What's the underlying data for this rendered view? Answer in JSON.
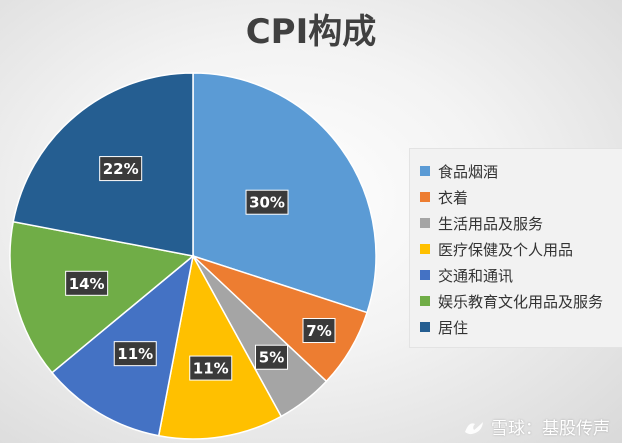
{
  "watermark": "雪球：基股传声",
  "colors": {
    "food": "#5b9bd5",
    "clothing": "#ed7d31",
    "daily": "#a5a5a5",
    "health": "#ffc000",
    "transport": "#4472c4",
    "education": "#70ad47",
    "housing": "#255e91"
  },
  "chart_data": {
    "type": "pie",
    "title": "CPI构成",
    "legend_position": "right",
    "categories": [
      "食品烟酒",
      "衣着",
      "生活用品及服务",
      "医疗保健及个人用品",
      "交通和通讯",
      "娱乐教育文化用品及服务",
      "居住"
    ],
    "values": [
      30,
      7,
      5,
      11,
      11,
      14,
      22
    ],
    "labels": [
      "30%",
      "7%",
      "5%",
      "11%",
      "11%",
      "14%",
      "22%"
    ],
    "colors": [
      "#5b9bd5",
      "#ed7d31",
      "#a5a5a5",
      "#ffc000",
      "#4472c4",
      "#70ad47",
      "#255e91"
    ]
  }
}
